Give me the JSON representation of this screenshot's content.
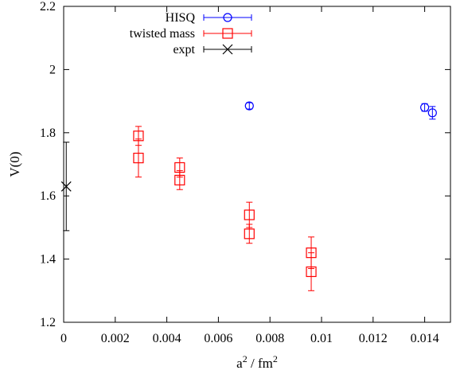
{
  "chart_data": {
    "type": "scatter",
    "title": "",
    "xlabel": {
      "base": "a",
      "sup1": "2",
      "mid": " / fm",
      "sup2": "2"
    },
    "ylabel": "V(0)",
    "xlim": [
      0,
      0.015
    ],
    "ylim": [
      1.2,
      2.2
    ],
    "x_ticks": [
      0,
      0.002,
      0.004,
      0.006,
      0.008,
      0.01,
      0.012,
      0.014
    ],
    "x_tick_labels": [
      "0",
      "0.002",
      "0.004",
      "0.006",
      "0.008",
      "0.01",
      "0.012",
      "0.014"
    ],
    "y_ticks": [
      1.2,
      1.4,
      1.6,
      1.8,
      2.0,
      2.2
    ],
    "y_tick_labels": [
      "1.2",
      "1.4",
      "1.6",
      "1.8",
      "2",
      "2.2"
    ],
    "grid": false,
    "legend_placement": "top-left",
    "series": [
      {
        "name": "HISQ",
        "marker": "circle",
        "color": "#0000ff",
        "points": [
          {
            "x": 0.0072,
            "y": 1.885,
            "err": 0.01
          },
          {
            "x": 0.014,
            "y": 1.88,
            "err": 0.012
          },
          {
            "x": 0.0143,
            "y": 1.863,
            "err": 0.02
          }
        ]
      },
      {
        "name": "twisted mass",
        "marker": "square",
        "color": "#ff0000",
        "points": [
          {
            "x": 0.0029,
            "y": 1.79,
            "err": 0.03
          },
          {
            "x": 0.0029,
            "y": 1.72,
            "err": 0.06
          },
          {
            "x": 0.0045,
            "y": 1.69,
            "err": 0.03
          },
          {
            "x": 0.0045,
            "y": 1.65,
            "err": 0.03
          },
          {
            "x": 0.0072,
            "y": 1.54,
            "err": 0.04
          },
          {
            "x": 0.0072,
            "y": 1.48,
            "err": 0.03
          },
          {
            "x": 0.0096,
            "y": 1.42,
            "err": 0.05
          },
          {
            "x": 0.0096,
            "y": 1.36,
            "err": 0.06
          }
        ]
      },
      {
        "name": "expt",
        "marker": "cross",
        "color": "#000000",
        "points": [
          {
            "x": 0.0001,
            "y": 1.63,
            "err": 0.14
          }
        ]
      }
    ]
  }
}
